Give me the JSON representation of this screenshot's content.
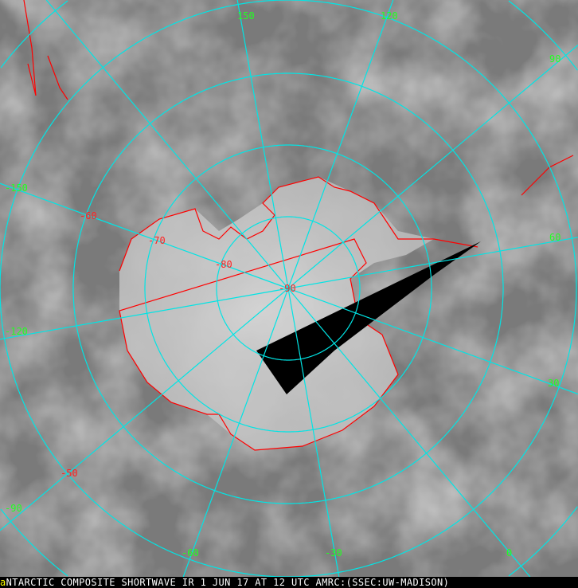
{
  "map": {
    "projection": "polar stereographic, south pole",
    "colors": {
      "graticule": "#00e5e5",
      "coastline": "#ff0000",
      "longitude_labels": "#22ff22",
      "latitude_labels": "#ff2222",
      "no_data": "#000000"
    },
    "longitude_labels": [
      "150",
      "120",
      "90",
      "60",
      "30",
      "0",
      "-30",
      "-60",
      "-90",
      "-120",
      "-150"
    ],
    "latitude_labels": [
      "-50",
      "-60",
      "-70",
      "-80",
      "-90"
    ]
  },
  "caption": {
    "marker": "a",
    "text": "NTARCTIC COMPOSITE SHORTWAVE IR 1 JUN 17 AT 12 UTC AMRC:(SSEC:UW-MADISON)"
  }
}
